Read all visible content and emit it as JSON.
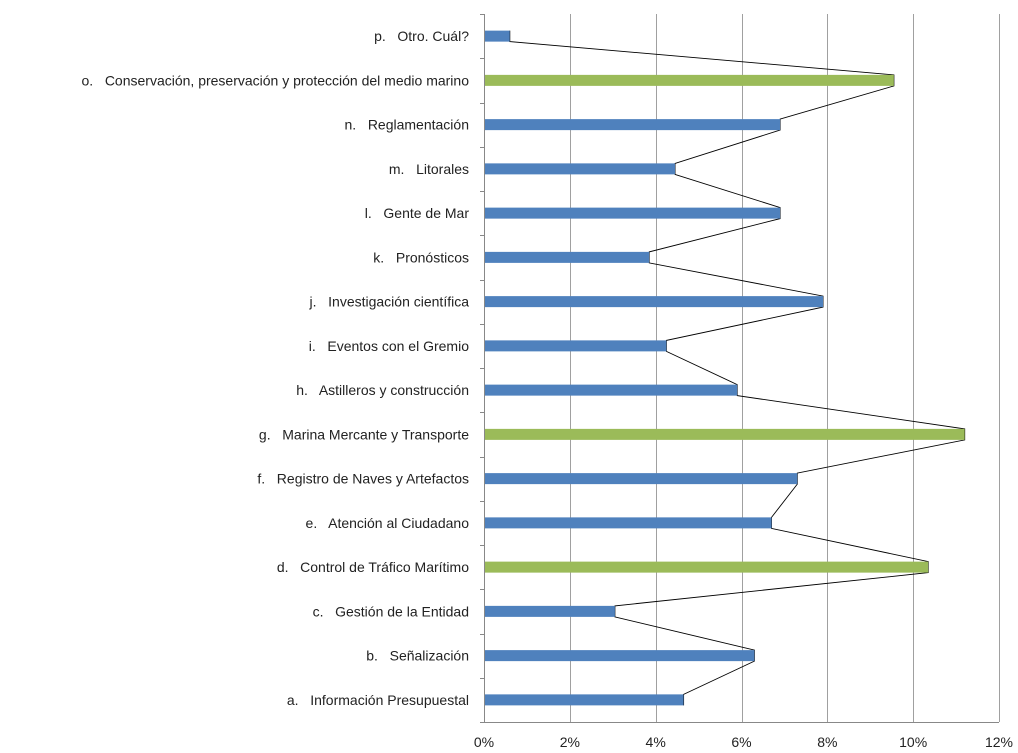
{
  "chart_data": {
    "type": "bar",
    "orientation": "horizontal",
    "categories": [
      "a.   Información Presupuestal",
      "b.   Señalización",
      "c.   Gestión de la Entidad",
      "d.   Control de Tráfico Marítimo",
      "e.   Atención al Ciudadano",
      "f.   Registro de Naves y Artefactos",
      "g.   Marina Mercante y Transporte",
      "h.   Astilleros y construcción",
      "i.   Eventos con el Gremio",
      "j.   Investigación científica",
      "k.   Pronósticos",
      "l.   Gente de Mar",
      "m.   Litorales",
      "n.   Reglamentación",
      "o.   Conservación, preservación y protección del medio marino",
      "p.   Otro. Cuál?"
    ],
    "values": [
      4.65,
      6.3,
      3.05,
      10.35,
      6.7,
      7.3,
      11.2,
      5.9,
      4.25,
      7.9,
      3.85,
      6.9,
      4.45,
      6.9,
      9.55,
      0.6
    ],
    "highlighted": [
      false,
      false,
      false,
      true,
      false,
      false,
      true,
      false,
      false,
      false,
      false,
      false,
      false,
      false,
      true,
      false
    ],
    "colors": {
      "bar": "#4f81bd",
      "highlight": "#9bbb59",
      "line": "#000000",
      "grid": "#a0a0a0"
    },
    "xlim": [
      0,
      12
    ],
    "x_ticks": [
      "0%",
      "2%",
      "4%",
      "6%",
      "8%",
      "10%",
      "12%"
    ],
    "grid": true,
    "connector_line": true,
    "title": "",
    "xlabel": "",
    "ylabel": ""
  }
}
